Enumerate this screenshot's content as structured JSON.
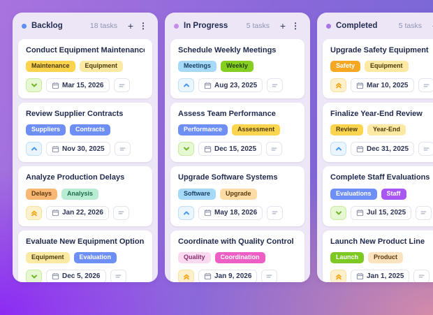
{
  "ui": {
    "add_task_label": "Add Task",
    "plus_glyph": "+",
    "kebab_glyph": "⋮",
    "column_bg": "#ece6f7",
    "card_bg": "#ffffff"
  },
  "priority_styles": {
    "low": {
      "glyph": "chevron-down-icon",
      "bg": "#e5f8d2",
      "border": "#c9ec9f",
      "icon_color": "#74b52a"
    },
    "medium": {
      "glyph": "chevron-up-icon",
      "bg": "#eaf5fe",
      "border": "#bfe0fa",
      "icon_color": "#4b98f3"
    },
    "high": {
      "glyph": "double-chevron-up-icon",
      "bg": "#fdf1cd",
      "border": "#f8e3a0",
      "icon_color": "#f2a71b"
    }
  },
  "columns": [
    {
      "name": "Backlog",
      "count": "18 tasks",
      "dot_color": "#5b8df5",
      "tasks": [
        {
          "title": "Conduct Equipment Maintenance",
          "tags": [
            {
              "label": "Maintenance",
              "bg": "#fcd44e",
              "fg": "#493a0b"
            },
            {
              "label": "Equipment",
              "bg": "#fce9a4",
              "fg": "#493a0b"
            }
          ],
          "priority": "low",
          "due_date": "Mar 15, 2026"
        },
        {
          "title": "Review Supplier Contracts",
          "tags": [
            {
              "label": "Suppliers",
              "bg": "#6e8ff6",
              "fg": "#ffffff"
            },
            {
              "label": "Contracts",
              "bg": "#6e8ff6",
              "fg": "#ffffff"
            }
          ],
          "priority": "medium",
          "due_date": "Nov 30, 2025"
        },
        {
          "title": "Analyze Production Delays",
          "tags": [
            {
              "label": "Delays",
              "bg": "#f8b772",
              "fg": "#5c3a10"
            },
            {
              "label": "Analysis",
              "bg": "#b9edd3",
              "fg": "#1d6b47"
            }
          ],
          "priority": "high",
          "due_date": "Jan 22, 2026"
        },
        {
          "title": "Evaluate New Equipment Options",
          "tags": [
            {
              "label": "Equipment",
              "bg": "#fce9a4",
              "fg": "#493a0b"
            },
            {
              "label": "Evaluation",
              "bg": "#6e8ff6",
              "fg": "#ffffff"
            }
          ],
          "priority": "low",
          "due_date": "Dec 5, 2026"
        }
      ]
    },
    {
      "name": "In Progress",
      "count": "5 tasks",
      "dot_color": "#c48ce6",
      "tasks": [
        {
          "title": "Schedule Weekly Meetings",
          "tags": [
            {
              "label": "Meetings",
              "bg": "#a6d9f7",
              "fg": "#173f63"
            },
            {
              "label": "Weekly",
              "bg": "#86cf21",
              "fg": "#23430a"
            }
          ],
          "priority": "medium",
          "due_date": "Aug 23, 2025"
        },
        {
          "title": "Assess Team Performance",
          "tags": [
            {
              "label": "Performance",
              "bg": "#6e8ff6",
              "fg": "#ffffff"
            },
            {
              "label": "Assessment",
              "bg": "#fcd44e",
              "fg": "#493a0b"
            }
          ],
          "priority": "low",
          "due_date": "Dec 15, 2025"
        },
        {
          "title": "Upgrade Software Systems",
          "tags": [
            {
              "label": "Software",
              "bg": "#a6d9f7",
              "fg": "#173f63"
            },
            {
              "label": "Upgrade",
              "bg": "#fcdca4",
              "fg": "#5c3a10"
            }
          ],
          "priority": "medium",
          "due_date": "May 18, 2026"
        },
        {
          "title": "Coordinate with Quality Control",
          "tags": [
            {
              "label": "Quality",
              "bg": "#fbd9f1",
              "fg": "#8a2f6d"
            },
            {
              "label": "Coordination",
              "bg": "#ee5fc5",
              "fg": "#ffffff"
            }
          ],
          "priority": "high",
          "due_date": "Jan 9, 2026"
        }
      ]
    },
    {
      "name": "Completed",
      "count": "5 tasks",
      "dot_color": "#a974e3",
      "tasks": [
        {
          "title": "Upgrade Safety Equipment",
          "tags": [
            {
              "label": "Safety",
              "bg": "#f6a823",
              "fg": "#ffffff"
            },
            {
              "label": "Equipment",
              "bg": "#fce9a4",
              "fg": "#493a0b"
            }
          ],
          "priority": "high",
          "due_date": "Mar 10, 2025"
        },
        {
          "title": "Finalize Year-End Review",
          "tags": [
            {
              "label": "Review",
              "bg": "#fcd44e",
              "fg": "#493a0b"
            },
            {
              "label": "Year-End",
              "bg": "#fce9a4",
              "fg": "#493a0b"
            }
          ],
          "priority": "medium",
          "due_date": "Dec 31, 2025"
        },
        {
          "title": "Complete Staff Evaluations",
          "tags": [
            {
              "label": "Evaluations",
              "bg": "#6e8ff6",
              "fg": "#ffffff"
            },
            {
              "label": "Staff",
              "bg": "#a957f2",
              "fg": "#ffffff"
            }
          ],
          "priority": "low",
          "due_date": "Jul 15, 2025"
        },
        {
          "title": "Launch New Product Line",
          "tags": [
            {
              "label": "Launch",
              "bg": "#7ec822",
              "fg": "#ffffff"
            },
            {
              "label": "Product",
              "bg": "#fce3bd",
              "fg": "#5c3a10"
            }
          ],
          "priority": "high",
          "due_date": "Jan 1, 2025"
        }
      ]
    }
  ]
}
